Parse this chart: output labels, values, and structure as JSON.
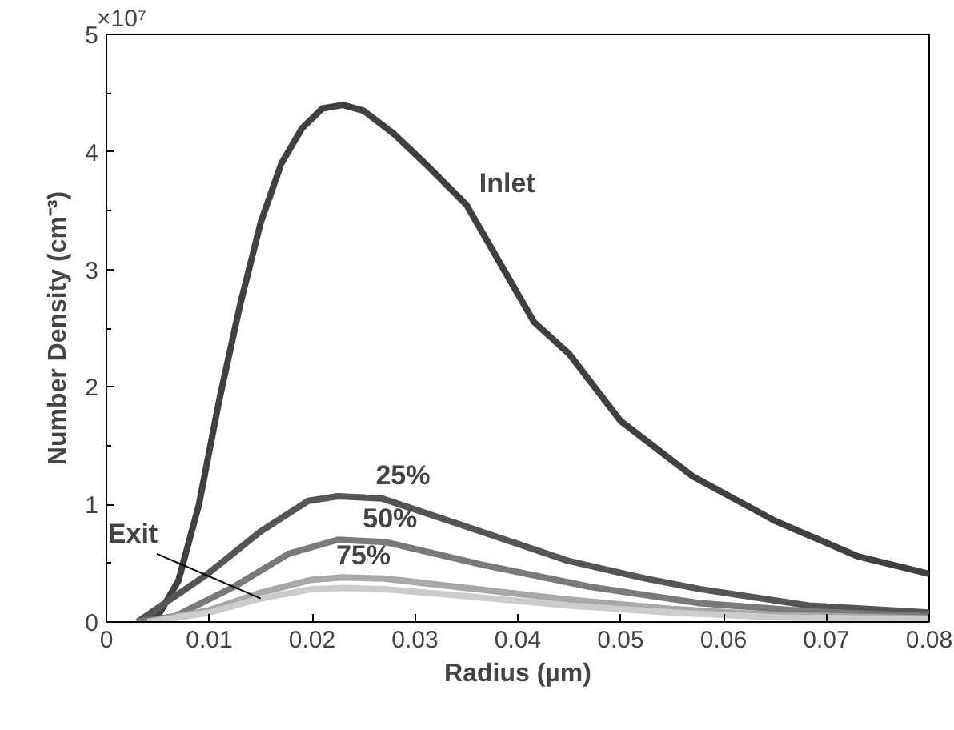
{
  "chart_data": {
    "type": "line",
    "xlabel": "Radius (µm)",
    "ylabel": "Number Density (cm⁻³)",
    "annotations": [
      "×10⁷"
    ],
    "xlim": [
      0,
      0.08
    ],
    "xticks": [
      0,
      0.01,
      0.02,
      0.03,
      0.04,
      0.05,
      0.06,
      0.07,
      0.08
    ],
    "ylim": [
      0,
      5
    ],
    "yticks": [
      0,
      1,
      2,
      3,
      4,
      5
    ],
    "grid": false,
    "legend": false,
    "marker": "none",
    "line_style": "solid",
    "series": [
      {
        "name": "Inlet",
        "color": "#404040",
        "x": [
          0.003,
          0.005,
          0.007,
          0.009,
          0.011,
          0.013,
          0.015,
          0.017,
          0.019,
          0.021,
          0.023,
          0.025,
          0.028,
          0.031,
          0.035,
          0.0416,
          0.045,
          0.05,
          0.057,
          0.065,
          0.073,
          0.08
        ],
        "values": [
          0,
          0.05,
          0.35,
          1.0,
          1.9,
          2.7,
          3.4,
          3.9,
          4.2,
          4.37,
          4.4,
          4.35,
          4.15,
          3.9,
          3.55,
          2.55,
          2.28,
          1.71,
          1.24,
          0.86,
          0.56,
          0.41
        ]
      },
      {
        "name": "25%",
        "color": "#555555",
        "x": [
          0.003,
          0.0097,
          0.015,
          0.0196,
          0.0225,
          0.0268,
          0.0364,
          0.0449,
          0.0524,
          0.0577,
          0.0683,
          0.08
        ],
        "values": [
          0,
          0.4,
          0.77,
          1.03,
          1.07,
          1.05,
          0.77,
          0.52,
          0.37,
          0.28,
          0.14,
          0.08
        ]
      },
      {
        "name": "50%",
        "color": "#7a7a7a",
        "x": [
          0.003,
          0.0067,
          0.0124,
          0.0177,
          0.0225,
          0.0271,
          0.0364,
          0.047,
          0.0577,
          0.0683,
          0.08
        ],
        "values": [
          0,
          0.05,
          0.3,
          0.58,
          0.7,
          0.68,
          0.49,
          0.3,
          0.16,
          0.09,
          0.05
        ]
      },
      {
        "name": "75%",
        "color": "#a8a8a8",
        "x": [
          0.004,
          0.01,
          0.015,
          0.02,
          0.023,
          0.027,
          0.035,
          0.045,
          0.055,
          0.065,
          0.08
        ],
        "values": [
          0,
          0.1,
          0.25,
          0.36,
          0.38,
          0.37,
          0.29,
          0.19,
          0.11,
          0.06,
          0.03
        ]
      },
      {
        "name": "Exit",
        "color": "#cccccc",
        "x": [
          0.004,
          0.01,
          0.015,
          0.02,
          0.023,
          0.027,
          0.035,
          0.045,
          0.055,
          0.065,
          0.08
        ],
        "values": [
          0,
          0.08,
          0.2,
          0.28,
          0.29,
          0.28,
          0.22,
          0.14,
          0.08,
          0.04,
          0.02
        ]
      }
    ]
  }
}
